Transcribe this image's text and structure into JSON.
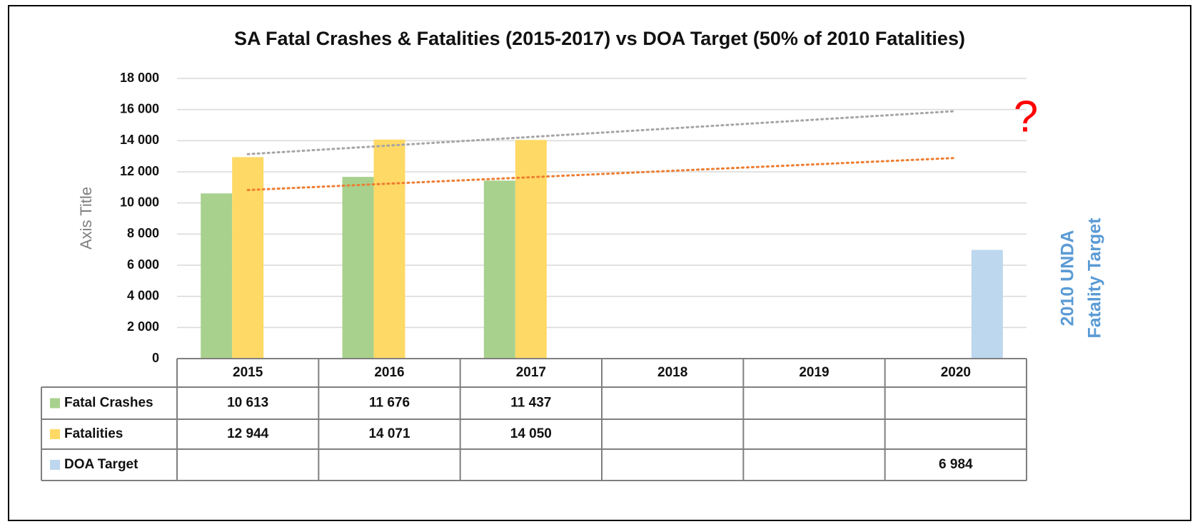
{
  "chart_data": {
    "type": "bar",
    "title": "SA Fatal Crashes & Fatalities (2015-2017) vs DOA Target (50% of 2010  Fatalities)",
    "y_label": "Axis Title",
    "right_label": [
      "2010 UNDA",
      "Fatality Target"
    ],
    "annotation": "?",
    "categories": [
      "2015",
      "2016",
      "2017",
      "2018",
      "2019",
      "2020"
    ],
    "series": [
      {
        "name": "Fatal Crashes",
        "color": "#a9d18e",
        "trendline_color": "#ed7d31",
        "values": [
          10613,
          11676,
          11437,
          null,
          null,
          null
        ],
        "value_labels": [
          "10 613",
          "11 676",
          "11 437",
          null,
          null,
          null
        ]
      },
      {
        "name": "Fatalities",
        "color": "#ffd966",
        "trendline_color": "#a5a5a5",
        "values": [
          12944,
          14071,
          14050,
          null,
          null,
          null
        ],
        "value_labels": [
          "12 944",
          "14 071",
          "14 050",
          null,
          null,
          null
        ]
      },
      {
        "name": "DOA Target",
        "color": "#bdd7ee",
        "values": [
          null,
          null,
          null,
          null,
          null,
          6984
        ],
        "value_labels": [
          null,
          null,
          null,
          null,
          null,
          "6 984"
        ]
      }
    ],
    "ylim": [
      0,
      18000
    ],
    "yticks": [
      0,
      {
        "value": 2000,
        "label": "2 000"
      },
      {
        "value": 4000,
        "label": "4 000"
      },
      {
        "value": 6000,
        "label": "6 000"
      },
      {
        "value": 8000,
        "label": "8 000"
      },
      {
        "value": 10000,
        "label": "10 000"
      },
      {
        "value": 12000,
        "label": "12 000"
      },
      {
        "value": 14000,
        "label": "14 000"
      },
      {
        "value": 16000,
        "label": "16 000"
      },
      {
        "value": 18000,
        "label": "18 000"
      }
    ],
    "grid": true,
    "data_table": true
  }
}
